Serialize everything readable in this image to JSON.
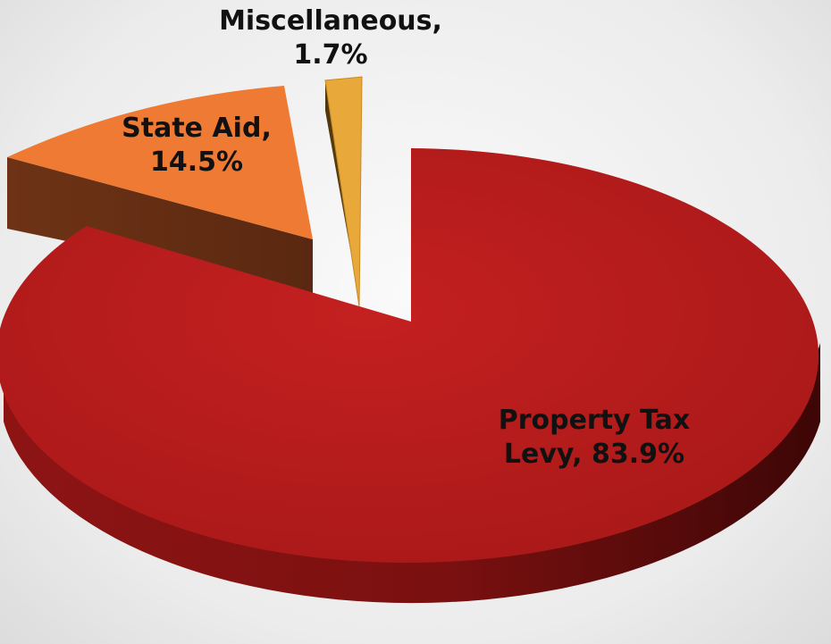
{
  "chart_data": {
    "type": "pie",
    "style": "3d-exploded",
    "slices": [
      {
        "label_line1": "Property Tax",
        "label_line2": "Levy, 83.9%",
        "name": "Property Tax Levy",
        "value": 83.9,
        "color": "#b81c1c",
        "side_color": "#7a1010"
      },
      {
        "label_line1": "State Aid,",
        "label_line2": "14.5%",
        "name": "State Aid",
        "value": 14.5,
        "color": "#ef7a33",
        "side_color": "#6e3316"
      },
      {
        "label_line1": "Miscellaneous,",
        "label_line2": "1.7%",
        "name": "Miscellaneous",
        "value": 1.7,
        "color": "#e9a83a",
        "side_color": "#6a4a12"
      }
    ]
  }
}
